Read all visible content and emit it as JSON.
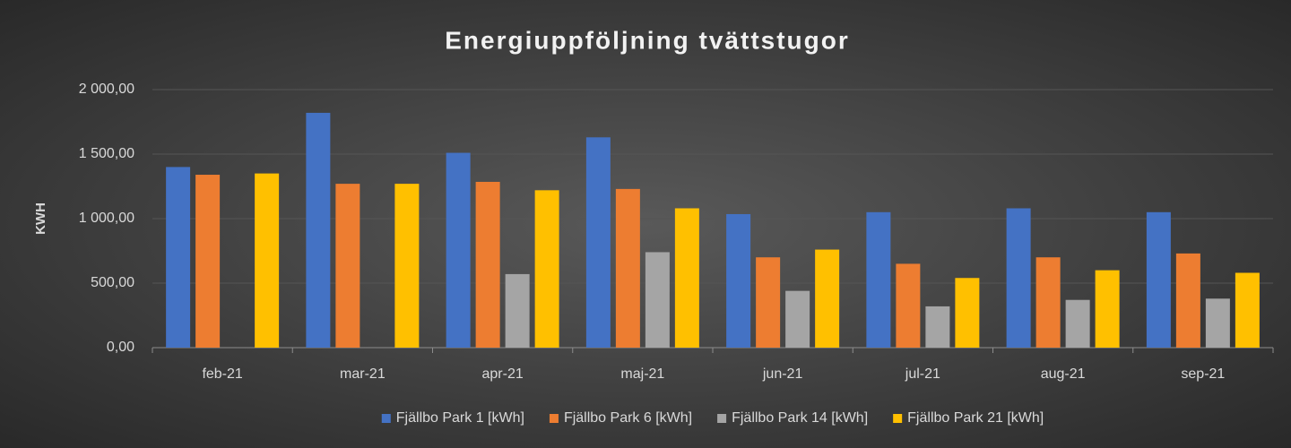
{
  "chart_data": {
    "type": "bar",
    "title": "Energiuppföljning  tvättstugor",
    "y_label": "KWH",
    "categories": [
      "feb-21",
      "mar-21",
      "apr-21",
      "maj-21",
      "jun-21",
      "jul-21",
      "aug-21",
      "sep-21"
    ],
    "series": [
      {
        "name": "Fjällbo Park 1 [kWh]",
        "color": "#4472c4",
        "values": [
          1400,
          1820,
          1510,
          1630,
          1035,
          1050,
          1080,
          1050
        ]
      },
      {
        "name": "Fjällbo Park 6 [kWh]",
        "color": "#ed7d31",
        "values": [
          1340,
          1270,
          1285,
          1230,
          700,
          650,
          700,
          730
        ]
      },
      {
        "name": "Fjällbo Park 14 [kWh]",
        "color": "#a5a5a5",
        "values": [
          null,
          null,
          570,
          740,
          440,
          320,
          370,
          380
        ]
      },
      {
        "name": "Fjällbo Park 21 [kWh]",
        "color": "#ffc000",
        "values": [
          1350,
          1270,
          1220,
          1080,
          760,
          540,
          600,
          580
        ]
      }
    ],
    "ylim": [
      0,
      2000
    ],
    "yticks": [
      {
        "value": 0,
        "label": "0,00"
      },
      {
        "value": 500,
        "label": "500,00"
      },
      {
        "value": 1000,
        "label": "1 000,00"
      },
      {
        "value": 1500,
        "label": "1 500,00"
      },
      {
        "value": 2000,
        "label": "2 000,00"
      }
    ],
    "grid": true,
    "legend": "bottom"
  }
}
